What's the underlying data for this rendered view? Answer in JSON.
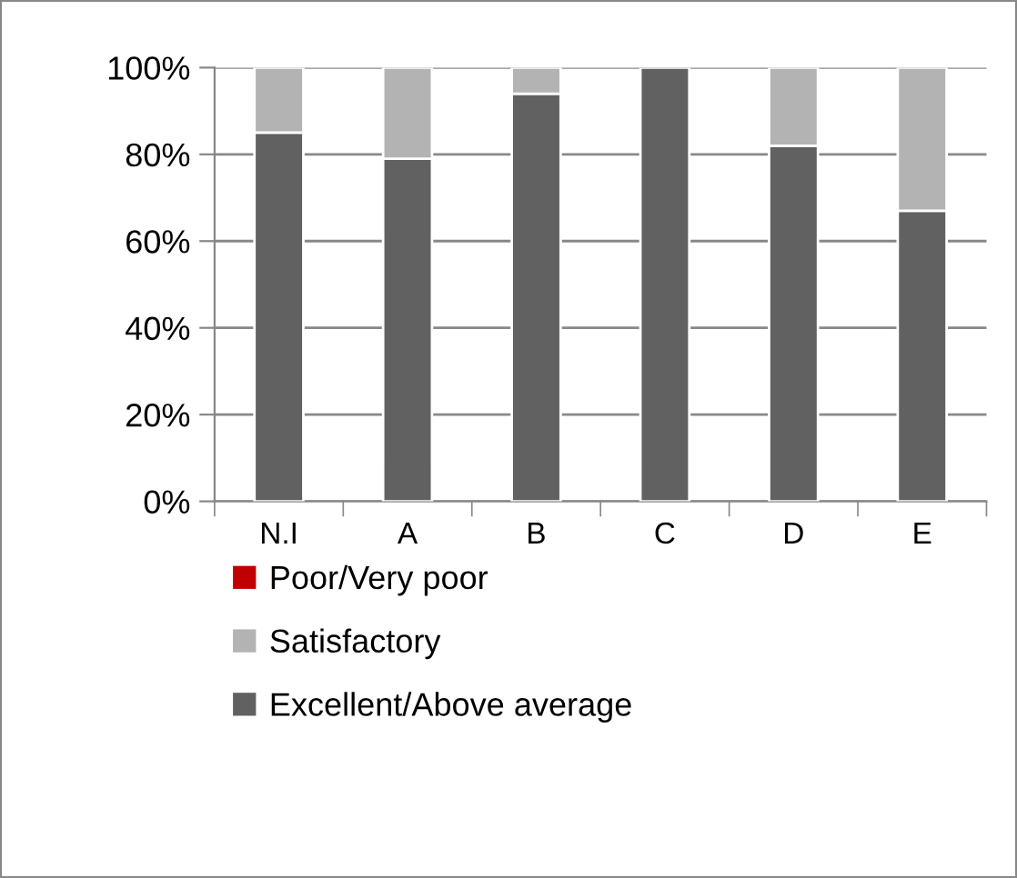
{
  "chart_data": {
    "type": "bar",
    "stacked": true,
    "categories": [
      "N.I",
      "A",
      "B",
      "C",
      "D",
      "E"
    ],
    "series": [
      {
        "name": "Excellent/Above average",
        "color": "#616161",
        "values": [
          85,
          79,
          94,
          100,
          82,
          67
        ]
      },
      {
        "name": "Satisfactory",
        "color": "#b3b3b3",
        "values": [
          15,
          21,
          6,
          0,
          18,
          33
        ]
      },
      {
        "name": "Poor/Very poor",
        "color": "#c00000",
        "values": [
          0,
          0,
          0,
          0,
          0,
          0
        ]
      }
    ],
    "ylim": [
      0,
      100
    ],
    "yticks": [
      {
        "value": 0,
        "label": "0%"
      },
      {
        "value": 20,
        "label": "20%"
      },
      {
        "value": 40,
        "label": "40%"
      },
      {
        "value": 60,
        "label": "60%"
      },
      {
        "value": 80,
        "label": "80%"
      },
      {
        "value": 100,
        "label": "100%"
      }
    ],
    "grid": "y",
    "legend": "bottom"
  }
}
